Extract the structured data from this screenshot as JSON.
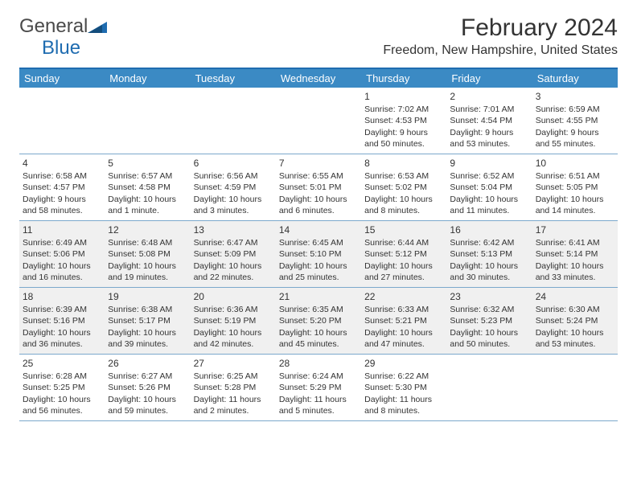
{
  "logo": {
    "text1": "General",
    "text2": "Blue"
  },
  "title": "February 2024",
  "location": "Freedom, New Hampshire, United States",
  "colors": {
    "header_bg": "#3b8ac4",
    "header_border": "#1f6cb0",
    "row_border": "#7ba8cc",
    "shaded_bg": "#f0f0f0",
    "text": "#333333",
    "logo_gray": "#4a4a4a",
    "logo_blue": "#1f6cb0"
  },
  "day_names": [
    "Sunday",
    "Monday",
    "Tuesday",
    "Wednesday",
    "Thursday",
    "Friday",
    "Saturday"
  ],
  "weeks": [
    {
      "shaded": false,
      "cells": [
        {
          "n": "",
          "sr": "",
          "ss": "",
          "dl": ""
        },
        {
          "n": "",
          "sr": "",
          "ss": "",
          "dl": ""
        },
        {
          "n": "",
          "sr": "",
          "ss": "",
          "dl": ""
        },
        {
          "n": "",
          "sr": "",
          "ss": "",
          "dl": ""
        },
        {
          "n": "1",
          "sr": "Sunrise: 7:02 AM",
          "ss": "Sunset: 4:53 PM",
          "dl": "Daylight: 9 hours and 50 minutes."
        },
        {
          "n": "2",
          "sr": "Sunrise: 7:01 AM",
          "ss": "Sunset: 4:54 PM",
          "dl": "Daylight: 9 hours and 53 minutes."
        },
        {
          "n": "3",
          "sr": "Sunrise: 6:59 AM",
          "ss": "Sunset: 4:55 PM",
          "dl": "Daylight: 9 hours and 55 minutes."
        }
      ]
    },
    {
      "shaded": false,
      "cells": [
        {
          "n": "4",
          "sr": "Sunrise: 6:58 AM",
          "ss": "Sunset: 4:57 PM",
          "dl": "Daylight: 9 hours and 58 minutes."
        },
        {
          "n": "5",
          "sr": "Sunrise: 6:57 AM",
          "ss": "Sunset: 4:58 PM",
          "dl": "Daylight: 10 hours and 1 minute."
        },
        {
          "n": "6",
          "sr": "Sunrise: 6:56 AM",
          "ss": "Sunset: 4:59 PM",
          "dl": "Daylight: 10 hours and 3 minutes."
        },
        {
          "n": "7",
          "sr": "Sunrise: 6:55 AM",
          "ss": "Sunset: 5:01 PM",
          "dl": "Daylight: 10 hours and 6 minutes."
        },
        {
          "n": "8",
          "sr": "Sunrise: 6:53 AM",
          "ss": "Sunset: 5:02 PM",
          "dl": "Daylight: 10 hours and 8 minutes."
        },
        {
          "n": "9",
          "sr": "Sunrise: 6:52 AM",
          "ss": "Sunset: 5:04 PM",
          "dl": "Daylight: 10 hours and 11 minutes."
        },
        {
          "n": "10",
          "sr": "Sunrise: 6:51 AM",
          "ss": "Sunset: 5:05 PM",
          "dl": "Daylight: 10 hours and 14 minutes."
        }
      ]
    },
    {
      "shaded": true,
      "cells": [
        {
          "n": "11",
          "sr": "Sunrise: 6:49 AM",
          "ss": "Sunset: 5:06 PM",
          "dl": "Daylight: 10 hours and 16 minutes."
        },
        {
          "n": "12",
          "sr": "Sunrise: 6:48 AM",
          "ss": "Sunset: 5:08 PM",
          "dl": "Daylight: 10 hours and 19 minutes."
        },
        {
          "n": "13",
          "sr": "Sunrise: 6:47 AM",
          "ss": "Sunset: 5:09 PM",
          "dl": "Daylight: 10 hours and 22 minutes."
        },
        {
          "n": "14",
          "sr": "Sunrise: 6:45 AM",
          "ss": "Sunset: 5:10 PM",
          "dl": "Daylight: 10 hours and 25 minutes."
        },
        {
          "n": "15",
          "sr": "Sunrise: 6:44 AM",
          "ss": "Sunset: 5:12 PM",
          "dl": "Daylight: 10 hours and 27 minutes."
        },
        {
          "n": "16",
          "sr": "Sunrise: 6:42 AM",
          "ss": "Sunset: 5:13 PM",
          "dl": "Daylight: 10 hours and 30 minutes."
        },
        {
          "n": "17",
          "sr": "Sunrise: 6:41 AM",
          "ss": "Sunset: 5:14 PM",
          "dl": "Daylight: 10 hours and 33 minutes."
        }
      ]
    },
    {
      "shaded": true,
      "cells": [
        {
          "n": "18",
          "sr": "Sunrise: 6:39 AM",
          "ss": "Sunset: 5:16 PM",
          "dl": "Daylight: 10 hours and 36 minutes."
        },
        {
          "n": "19",
          "sr": "Sunrise: 6:38 AM",
          "ss": "Sunset: 5:17 PM",
          "dl": "Daylight: 10 hours and 39 minutes."
        },
        {
          "n": "20",
          "sr": "Sunrise: 6:36 AM",
          "ss": "Sunset: 5:19 PM",
          "dl": "Daylight: 10 hours and 42 minutes."
        },
        {
          "n": "21",
          "sr": "Sunrise: 6:35 AM",
          "ss": "Sunset: 5:20 PM",
          "dl": "Daylight: 10 hours and 45 minutes."
        },
        {
          "n": "22",
          "sr": "Sunrise: 6:33 AM",
          "ss": "Sunset: 5:21 PM",
          "dl": "Daylight: 10 hours and 47 minutes."
        },
        {
          "n": "23",
          "sr": "Sunrise: 6:32 AM",
          "ss": "Sunset: 5:23 PM",
          "dl": "Daylight: 10 hours and 50 minutes."
        },
        {
          "n": "24",
          "sr": "Sunrise: 6:30 AM",
          "ss": "Sunset: 5:24 PM",
          "dl": "Daylight: 10 hours and 53 minutes."
        }
      ]
    },
    {
      "shaded": false,
      "cells": [
        {
          "n": "25",
          "sr": "Sunrise: 6:28 AM",
          "ss": "Sunset: 5:25 PM",
          "dl": "Daylight: 10 hours and 56 minutes."
        },
        {
          "n": "26",
          "sr": "Sunrise: 6:27 AM",
          "ss": "Sunset: 5:26 PM",
          "dl": "Daylight: 10 hours and 59 minutes."
        },
        {
          "n": "27",
          "sr": "Sunrise: 6:25 AM",
          "ss": "Sunset: 5:28 PM",
          "dl": "Daylight: 11 hours and 2 minutes."
        },
        {
          "n": "28",
          "sr": "Sunrise: 6:24 AM",
          "ss": "Sunset: 5:29 PM",
          "dl": "Daylight: 11 hours and 5 minutes."
        },
        {
          "n": "29",
          "sr": "Sunrise: 6:22 AM",
          "ss": "Sunset: 5:30 PM",
          "dl": "Daylight: 11 hours and 8 minutes."
        },
        {
          "n": "",
          "sr": "",
          "ss": "",
          "dl": ""
        },
        {
          "n": "",
          "sr": "",
          "ss": "",
          "dl": ""
        }
      ]
    }
  ]
}
